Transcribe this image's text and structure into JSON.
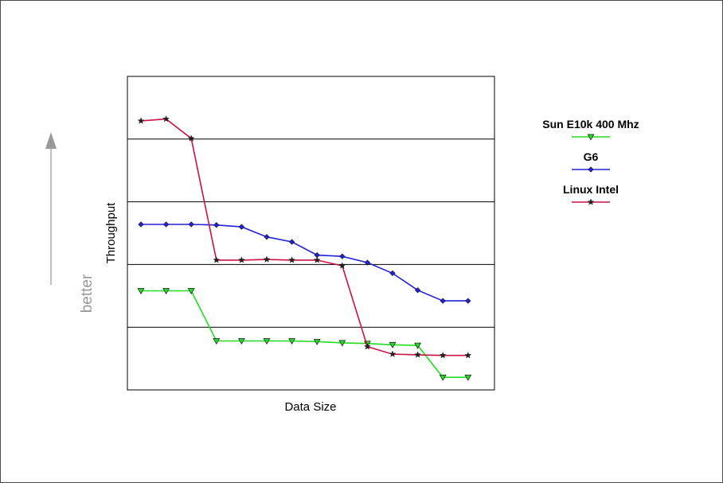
{
  "chart_data": {
    "type": "line",
    "xlabel": "Data Size",
    "ylabel": "Throughput",
    "annotation": "better",
    "x": [
      1,
      2,
      3,
      4,
      5,
      6,
      7,
      8,
      9,
      10,
      11,
      12,
      13,
      14
    ],
    "ylim": [
      0,
      5
    ],
    "grid": "horizontal",
    "legend_position": "right",
    "series": [
      {
        "name": "Sun E10k 400 Mhz",
        "color": "#22dd22",
        "marker": "triangle-down",
        "values": [
          1.58,
          1.58,
          1.58,
          0.78,
          0.78,
          0.78,
          0.78,
          0.77,
          0.75,
          0.74,
          0.72,
          0.71,
          0.2,
          0.2
        ]
      },
      {
        "name": "G6",
        "color": "#2222dd",
        "marker": "diamond",
        "values": [
          2.64,
          2.64,
          2.64,
          2.63,
          2.6,
          2.44,
          2.36,
          2.15,
          2.13,
          2.03,
          1.86,
          1.59,
          1.42,
          1.42
        ]
      },
      {
        "name": "Linux Intel",
        "color": "#cc1144",
        "marker": "star",
        "values": [
          4.29,
          4.32,
          4.01,
          2.07,
          2.07,
          2.08,
          2.07,
          2.07,
          1.98,
          0.69,
          0.57,
          0.56,
          0.55,
          0.55
        ]
      }
    ]
  }
}
